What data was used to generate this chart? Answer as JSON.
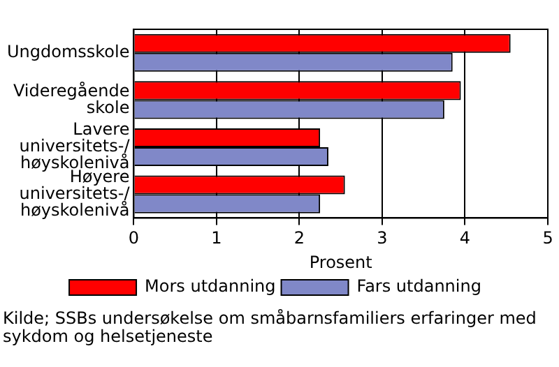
{
  "chart_data": {
    "type": "bar",
    "orientation": "horizontal",
    "categories": [
      "Ungdomsskole",
      "Videregående\nskole",
      "Lavere\nuniversitets-/\nhøyskolenivå",
      "Høyere\nuniversitets-/\nhøyskolenivå"
    ],
    "series": [
      {
        "name": "Mors utdanning",
        "color": "#ff0000",
        "values": [
          4.55,
          3.95,
          2.25,
          2.55
        ]
      },
      {
        "name": "Fars utdanning",
        "color": "#8088c8",
        "values": [
          3.85,
          3.75,
          2.35,
          2.25
        ]
      }
    ],
    "xlim": [
      0,
      5
    ],
    "xticks": [
      0,
      1,
      2,
      3,
      4,
      5
    ],
    "xlabel": "Prosent",
    "grid": "x",
    "legend": "bottom",
    "annotations": [
      "Kilde; SSBs undersøkelse om småbarnsfamiliers erfaringer med sykdom og helsetjeneste"
    ]
  }
}
